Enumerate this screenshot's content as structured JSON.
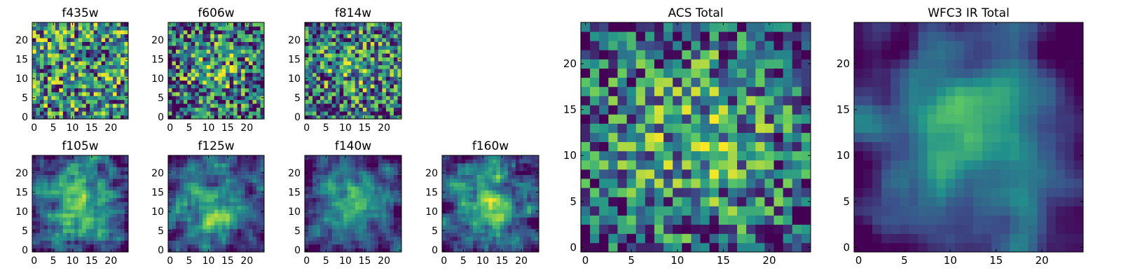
{
  "chart_data": [
    {
      "type": "heatmap",
      "title": "f435w",
      "grid_size": 25,
      "xlim": [
        -0.5,
        24.5
      ],
      "ylim": [
        -0.5,
        24.5
      ],
      "xticks": [
        0,
        5,
        10,
        15,
        20
      ],
      "xtick_labels": [
        "0",
        "5",
        "10",
        "15",
        "20"
      ],
      "yticks": [
        0,
        5,
        10,
        15,
        20
      ],
      "ytick_labels": [
        "0",
        "5",
        "10",
        "15",
        "20"
      ],
      "pattern": {
        "seed": 11,
        "smooth": 0,
        "center_boost": 0.0,
        "noise": 1.0
      }
    },
    {
      "type": "heatmap",
      "title": "f606w",
      "grid_size": 25,
      "xlim": [
        -0.5,
        24.5
      ],
      "ylim": [
        -0.5,
        24.5
      ],
      "xticks": [
        0,
        5,
        10,
        15,
        20
      ],
      "xtick_labels": [
        "0",
        "5",
        "10",
        "15",
        "20"
      ],
      "yticks": [
        0,
        5,
        10,
        15,
        20
      ],
      "ytick_labels": [
        "0",
        "5",
        "10",
        "15",
        "20"
      ],
      "pattern": {
        "seed": 22,
        "smooth": 0,
        "center_boost": 0.25,
        "noise": 1.0
      }
    },
    {
      "type": "heatmap",
      "title": "f814w",
      "grid_size": 25,
      "xlim": [
        -0.5,
        24.5
      ],
      "ylim": [
        -0.5,
        24.5
      ],
      "xticks": [
        0,
        5,
        10,
        15,
        20
      ],
      "xtick_labels": [
        "0",
        "5",
        "10",
        "15",
        "20"
      ],
      "yticks": [
        0,
        5,
        10,
        15,
        20
      ],
      "ytick_labels": [
        "0",
        "5",
        "10",
        "15",
        "20"
      ],
      "pattern": {
        "seed": 33,
        "smooth": 0,
        "center_boost": 0.2,
        "noise": 1.0
      }
    },
    {
      "type": "heatmap",
      "title": "f105w",
      "grid_size": 25,
      "xlim": [
        -0.5,
        24.5
      ],
      "ylim": [
        -0.5,
        24.5
      ],
      "xticks": [
        0,
        5,
        10,
        15,
        20
      ],
      "xtick_labels": [
        "0",
        "5",
        "10",
        "15",
        "20"
      ],
      "yticks": [
        0,
        5,
        10,
        15,
        20
      ],
      "ytick_labels": [
        "0",
        "5",
        "10",
        "15",
        "20"
      ],
      "pattern": {
        "seed": 44,
        "smooth": 1,
        "center_boost": 0.45,
        "noise": 0.8
      }
    },
    {
      "type": "heatmap",
      "title": "f125w",
      "grid_size": 25,
      "xlim": [
        -0.5,
        24.5
      ],
      "ylim": [
        -0.5,
        24.5
      ],
      "xticks": [
        0,
        5,
        10,
        15,
        20
      ],
      "xtick_labels": [
        "0",
        "5",
        "10",
        "15",
        "20"
      ],
      "yticks": [
        0,
        5,
        10,
        15,
        20
      ],
      "ytick_labels": [
        "0",
        "5",
        "10",
        "15",
        "20"
      ],
      "pattern": {
        "seed": 55,
        "smooth": 1,
        "center_boost": 0.4,
        "noise": 0.8
      }
    },
    {
      "type": "heatmap",
      "title": "f140w",
      "grid_size": 25,
      "xlim": [
        -0.5,
        24.5
      ],
      "ylim": [
        -0.5,
        24.5
      ],
      "xticks": [
        0,
        5,
        10,
        15,
        20
      ],
      "xtick_labels": [
        "0",
        "5",
        "10",
        "15",
        "20"
      ],
      "yticks": [
        0,
        5,
        10,
        15,
        20
      ],
      "ytick_labels": [
        "0",
        "5",
        "10",
        "15",
        "20"
      ],
      "pattern": {
        "seed": 66,
        "smooth": 1,
        "center_boost": 0.45,
        "noise": 0.8
      }
    },
    {
      "type": "heatmap",
      "title": "f160w",
      "grid_size": 25,
      "xlim": [
        -0.5,
        24.5
      ],
      "ylim": [
        -0.5,
        24.5
      ],
      "xticks": [
        0,
        5,
        10,
        15,
        20
      ],
      "xtick_labels": [
        "0",
        "5",
        "10",
        "15",
        "20"
      ],
      "yticks": [
        0,
        5,
        10,
        15,
        20
      ],
      "ytick_labels": [
        "0",
        "5",
        "10",
        "15",
        "20"
      ],
      "pattern": {
        "seed": 77,
        "smooth": 1,
        "center_boost": 0.5,
        "noise": 0.8
      }
    },
    {
      "type": "heatmap",
      "title": "ACS Total",
      "grid_size": 25,
      "xlim": [
        -0.5,
        24.5
      ],
      "ylim": [
        -0.5,
        24.5
      ],
      "xticks": [
        0,
        5,
        10,
        15,
        20
      ],
      "xtick_labels": [
        "0",
        "5",
        "10",
        "15",
        "20"
      ],
      "yticks": [
        0,
        5,
        10,
        15,
        20
      ],
      "ytick_labels": [
        "0",
        "5",
        "10",
        "15",
        "20"
      ],
      "pattern": {
        "seed": 88,
        "smooth": 0,
        "center_boost": 0.3,
        "noise": 0.9
      }
    },
    {
      "type": "heatmap",
      "title": "WFC3 IR Total",
      "grid_size": 25,
      "xlim": [
        -0.5,
        24.5
      ],
      "ylim": [
        -0.5,
        24.5
      ],
      "xticks": [
        0,
        5,
        10,
        15,
        20
      ],
      "xtick_labels": [
        "0",
        "5",
        "10",
        "15",
        "20"
      ],
      "yticks": [
        0,
        5,
        10,
        15,
        20
      ],
      "ytick_labels": [
        "0",
        "5",
        "10",
        "15",
        "20"
      ],
      "pattern": {
        "seed": 99,
        "smooth": 2,
        "center_boost": 0.6,
        "noise": 0.6
      }
    }
  ],
  "colormap": {
    "name": "viridis",
    "stops": [
      "#440154",
      "#3b528b",
      "#21918c",
      "#5ec962",
      "#fde725"
    ]
  }
}
